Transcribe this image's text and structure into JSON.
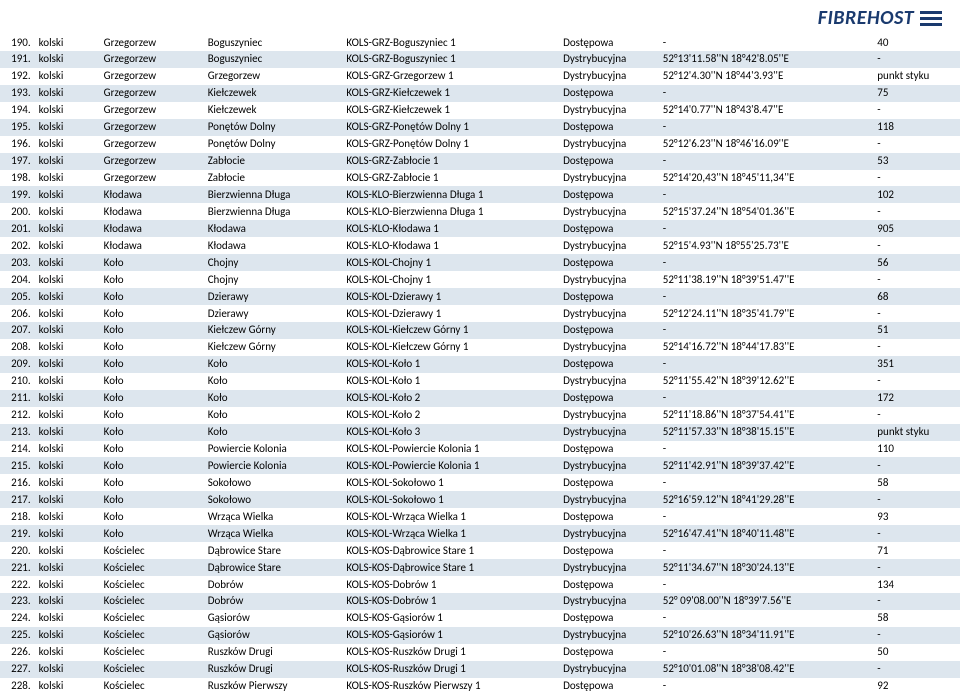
{
  "logo_text": "FIBREHOST",
  "rows": [
    {
      "n": "190.",
      "pow": "kolski",
      "gm": "Grzegorzew",
      "miej": "Boguszyniec",
      "kod": "KOLS-GRZ-Boguszyniec 1",
      "typ": "Dostępowa",
      "coord": "-",
      "val": "40"
    },
    {
      "n": "191.",
      "pow": "kolski",
      "gm": "Grzegorzew",
      "miej": "Boguszyniec",
      "kod": "KOLS-GRZ-Boguszyniec 1",
      "typ": "Dystrybucyjna",
      "coord": "52°13'11.58''N 18°42'8.05''E",
      "val": "-"
    },
    {
      "n": "192.",
      "pow": "kolski",
      "gm": "Grzegorzew",
      "miej": "Grzegorzew",
      "kod": "KOLS-GRZ-Grzegorzew 1",
      "typ": "Dystrybucyjna",
      "coord": "52°12'4.30''N  18°44'3.93''E",
      "val": "punkt styku"
    },
    {
      "n": "193.",
      "pow": "kolski",
      "gm": "Grzegorzew",
      "miej": "Kiełczewek",
      "kod": "KOLS-GRZ-Kiełczewek 1",
      "typ": "Dostępowa",
      "coord": "-",
      "val": "75"
    },
    {
      "n": "194.",
      "pow": "kolski",
      "gm": "Grzegorzew",
      "miej": "Kiełczewek",
      "kod": "KOLS-GRZ-Kiełczewek 1",
      "typ": "Dystrybucyjna",
      "coord": "52°14'0.77''N 18°43'8.47''E",
      "val": "-"
    },
    {
      "n": "195.",
      "pow": "kolski",
      "gm": "Grzegorzew",
      "miej": "Ponętów Dolny",
      "kod": "KOLS-GRZ-Ponętów Dolny 1",
      "typ": "Dostępowa",
      "coord": "-",
      "val": "118"
    },
    {
      "n": "196.",
      "pow": "kolski",
      "gm": "Grzegorzew",
      "miej": "Ponętów Dolny",
      "kod": "KOLS-GRZ-Ponętów Dolny 1",
      "typ": "Dystrybucyjna",
      "coord": "52°12'6.23''N  18°46'16.09''E",
      "val": "-"
    },
    {
      "n": "197.",
      "pow": "kolski",
      "gm": "Grzegorzew",
      "miej": "Zabłocie",
      "kod": "KOLS-GRZ-Zabłocie 1",
      "typ": "Dostępowa",
      "coord": "-",
      "val": "53"
    },
    {
      "n": "198.",
      "pow": "kolski",
      "gm": "Grzegorzew",
      "miej": "Zabłocie",
      "kod": "KOLS-GRZ-Zabłocie 1",
      "typ": "Dystrybucyjna",
      "coord": "52°14'20,43''N 18°45'11,34''E",
      "val": "-"
    },
    {
      "n": "199.",
      "pow": "kolski",
      "gm": "Kłodawa",
      "miej": "Bierzwienna Długa",
      "kod": "KOLS-KLO-Bierzwienna Długa 1",
      "typ": "Dostępowa",
      "coord": "-",
      "val": "102"
    },
    {
      "n": "200.",
      "pow": "kolski",
      "gm": "Kłodawa",
      "miej": "Bierzwienna Długa",
      "kod": "KOLS-KLO-Bierzwienna Długa 1",
      "typ": "Dystrybucyjna",
      "coord": "52°15'37.24''N 18°54'01.36''E",
      "val": "-"
    },
    {
      "n": "201.",
      "pow": "kolski",
      "gm": "Kłodawa",
      "miej": "Kłodawa",
      "kod": "KOLS-KLO-Kłodawa 1",
      "typ": "Dostępowa",
      "coord": "-",
      "val": "905"
    },
    {
      "n": "202.",
      "pow": "kolski",
      "gm": "Kłodawa",
      "miej": "Kłodawa",
      "kod": "KOLS-KLO-Kłodawa 1",
      "typ": "Dystrybucyjna",
      "coord": "52°15'4.93''N 18°55'25.73''E",
      "val": "-"
    },
    {
      "n": "203.",
      "pow": "kolski",
      "gm": "Koło",
      "miej": "Chojny",
      "kod": "KOLS-KOL-Chojny 1",
      "typ": "Dostępowa",
      "coord": "-",
      "val": "56"
    },
    {
      "n": "204.",
      "pow": "kolski",
      "gm": "Koło",
      "miej": "Chojny",
      "kod": "KOLS-KOL-Chojny 1",
      "typ": "Dystrybucyjna",
      "coord": "52°11'38.19''N 18°39'51.47''E",
      "val": "-"
    },
    {
      "n": "205.",
      "pow": "kolski",
      "gm": "Koło",
      "miej": "Dzierawy",
      "kod": "KOLS-KOL-Dzierawy 1",
      "typ": "Dostępowa",
      "coord": "-",
      "val": "68"
    },
    {
      "n": "206.",
      "pow": "kolski",
      "gm": "Koło",
      "miej": "Dzierawy",
      "kod": "KOLS-KOL-Dzierawy 1",
      "typ": "Dystrybucyjna",
      "coord": "52°12'24.11''N 18°35'41.79''E",
      "val": "-"
    },
    {
      "n": "207.",
      "pow": "kolski",
      "gm": "Koło",
      "miej": "Kiełczew Górny",
      "kod": "KOLS-KOL-Kiełczew Górny 1",
      "typ": "Dostępowa",
      "coord": "-",
      "val": "51"
    },
    {
      "n": "208.",
      "pow": "kolski",
      "gm": "Koło",
      "miej": "Kiełczew Górny",
      "kod": "KOLS-KOL-Kiełczew Górny 1",
      "typ": "Dystrybucyjna",
      "coord": "52°14'16.72''N 18°44'17.83''E",
      "val": "-"
    },
    {
      "n": "209.",
      "pow": "kolski",
      "gm": "Koło",
      "miej": "Koło",
      "kod": "KOLS-KOL-Koło 1",
      "typ": "Dostępowa",
      "coord": "-",
      "val": "351"
    },
    {
      "n": "210.",
      "pow": "kolski",
      "gm": "Koło",
      "miej": "Koło",
      "kod": "KOLS-KOL-Koło 1",
      "typ": "Dystrybucyjna",
      "coord": "52°11'55.42''N 18°39'12.62''E",
      "val": "-"
    },
    {
      "n": "211.",
      "pow": "kolski",
      "gm": "Koło",
      "miej": "Koło",
      "kod": "KOLS-KOL-Koło 2",
      "typ": "Dostępowa",
      "coord": "-",
      "val": "172"
    },
    {
      "n": "212.",
      "pow": "kolski",
      "gm": "Koło",
      "miej": "Koło",
      "kod": "KOLS-KOL-Koło 2",
      "typ": "Dystrybucyjna",
      "coord": "52°11'18.86''N 18°37'54.41''E",
      "val": "-"
    },
    {
      "n": "213.",
      "pow": "kolski",
      "gm": "Koło",
      "miej": "Koło",
      "kod": "KOLS-KOL-Koło 3",
      "typ": "Dystrybucyjna",
      "coord": "52°11'57.33''N  18°38'15.15''E",
      "val": "punkt styku"
    },
    {
      "n": "214.",
      "pow": "kolski",
      "gm": "Koło",
      "miej": "Powiercie Kolonia",
      "kod": "KOLS-KOL-Powiercie Kolonia 1",
      "typ": "Dostępowa",
      "coord": "-",
      "val": "110"
    },
    {
      "n": "215.",
      "pow": "kolski",
      "gm": "Koło",
      "miej": "Powiercie Kolonia",
      "kod": "KOLS-KOL-Powiercie Kolonia 1",
      "typ": "Dystrybucyjna",
      "coord": "52°11'42.91''N 18°39'37.42''E",
      "val": "-"
    },
    {
      "n": "216.",
      "pow": "kolski",
      "gm": "Koło",
      "miej": "Sokołowo",
      "kod": "KOLS-KOL-Sokołowo 1",
      "typ": "Dostępowa",
      "coord": "-",
      "val": "58"
    },
    {
      "n": "217.",
      "pow": "kolski",
      "gm": "Koło",
      "miej": "Sokołowo",
      "kod": "KOLS-KOL-Sokołowo 1",
      "typ": "Dystrybucyjna",
      "coord": "52°16'59.12''N 18°41'29.28''E",
      "val": "-"
    },
    {
      "n": "218.",
      "pow": "kolski",
      "gm": "Koło",
      "miej": "Wrząca Wielka",
      "kod": "KOLS-KOL-Wrząca Wielka 1",
      "typ": "Dostępowa",
      "coord": "-",
      "val": "93"
    },
    {
      "n": "219.",
      "pow": "kolski",
      "gm": "Koło",
      "miej": "Wrząca Wielka",
      "kod": "KOLS-KOL-Wrząca Wielka 1",
      "typ": "Dystrybucyjna",
      "coord": "52°16'47.41''N 18°40'11.48''E",
      "val": "-"
    },
    {
      "n": "220.",
      "pow": "kolski",
      "gm": "Kościelec",
      "miej": "Dąbrowice Stare",
      "kod": "KOLS-KOS-Dąbrowice Stare 1",
      "typ": "Dostępowa",
      "coord": "-",
      "val": "71"
    },
    {
      "n": "221.",
      "pow": "kolski",
      "gm": "Kościelec",
      "miej": "Dąbrowice Stare",
      "kod": "KOLS-KOS-Dąbrowice Stare 1",
      "typ": "Dystrybucyjna",
      "coord": "52°11'34.67''N 18°30'24.13''E",
      "val": "-"
    },
    {
      "n": "222.",
      "pow": "kolski",
      "gm": "Kościelec",
      "miej": "Dobrów",
      "kod": "KOLS-KOS-Dobrów 1",
      "typ": "Dostępowa",
      "coord": "-",
      "val": "134"
    },
    {
      "n": "223.",
      "pow": "kolski",
      "gm": "Kościelec",
      "miej": "Dobrów",
      "kod": "KOLS-KOS-Dobrów 1",
      "typ": "Dystrybucyjna",
      "coord": "52° 09'08.00''N 18°39'7.56''E",
      "val": "-"
    },
    {
      "n": "224.",
      "pow": "kolski",
      "gm": "Kościelec",
      "miej": "Gąsiorów",
      "kod": "KOLS-KOS-Gąsiorów 1",
      "typ": "Dostępowa",
      "coord": "-",
      "val": "58"
    },
    {
      "n": "225.",
      "pow": "kolski",
      "gm": "Kościelec",
      "miej": "Gąsiorów",
      "kod": "KOLS-KOS-Gąsiorów 1",
      "typ": "Dystrybucyjna",
      "coord": "52°10'26.63''N 18°34'11.91''E",
      "val": "-"
    },
    {
      "n": "226.",
      "pow": "kolski",
      "gm": "Kościelec",
      "miej": "Ruszków Drugi",
      "kod": "KOLS-KOS-Ruszków Drugi 1",
      "typ": "Dostępowa",
      "coord": "-",
      "val": "50"
    },
    {
      "n": "227.",
      "pow": "kolski",
      "gm": "Kościelec",
      "miej": "Ruszków Drugi",
      "kod": "KOLS-KOS-Ruszków Drugi 1",
      "typ": "Dystrybucyjna",
      "coord": "52°10'01.08''N 18°38'08.42''E",
      "val": "-"
    },
    {
      "n": "228.",
      "pow": "kolski",
      "gm": "Kościelec",
      "miej": "Ruszków Pierwszy",
      "kod": "KOLS-KOS-Ruszków Pierwszy 1",
      "typ": "Dostępowa",
      "coord": "-",
      "val": "92"
    }
  ]
}
